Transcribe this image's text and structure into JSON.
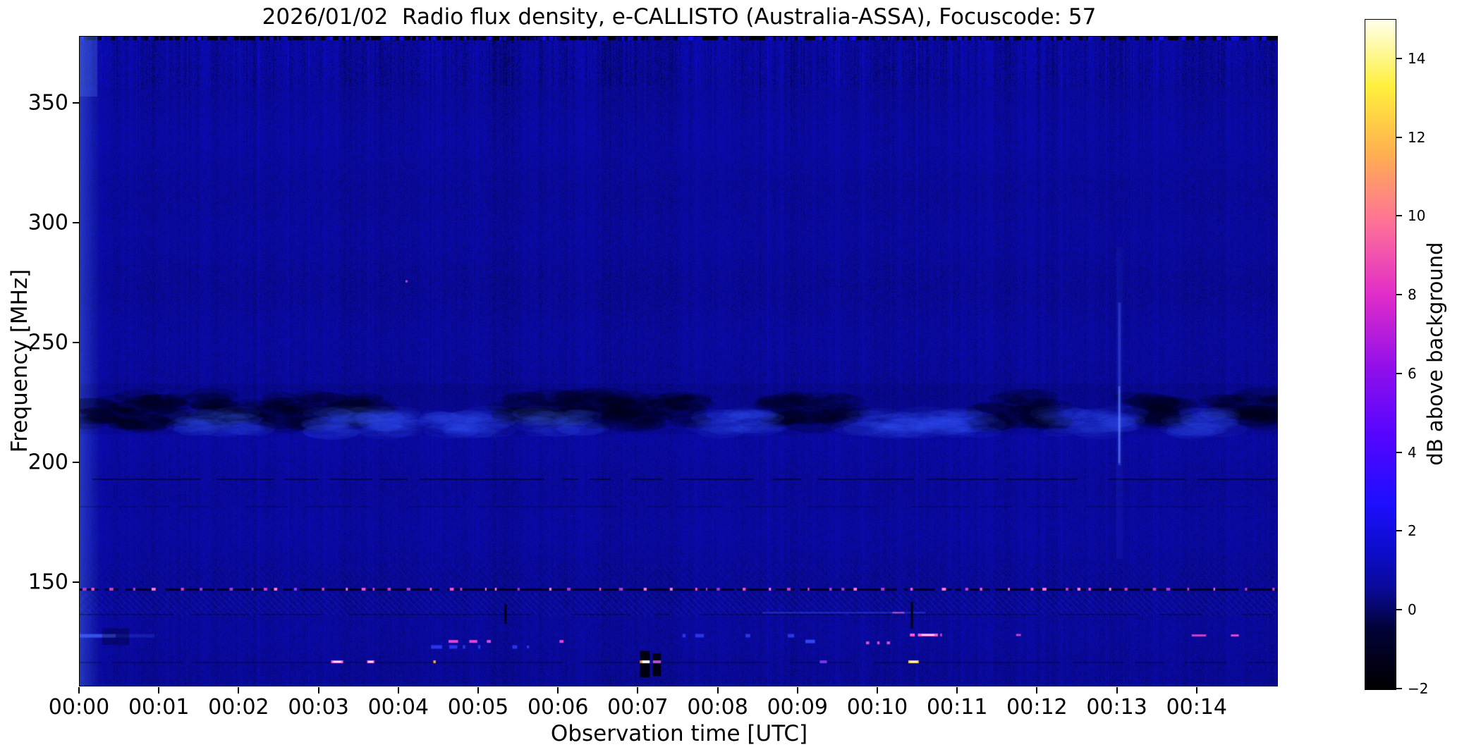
{
  "chart_data": {
    "type": "heatmap",
    "title": "2026/01/02  Radio flux density, e-CALLISTO (Australia-ASSA), Focuscode: 57",
    "xlabel": "Observation time [UTC]",
    "ylabel": "Frequency [MHz]",
    "x_ticks": [
      "00:00",
      "00:01",
      "00:02",
      "00:03",
      "00:04",
      "00:05",
      "00:06",
      "00:07",
      "00:08",
      "00:09",
      "00:10",
      "00:11",
      "00:12",
      "00:13",
      "00:14"
    ],
    "x_tick_minutes": [
      0,
      1,
      2,
      3,
      4,
      5,
      6,
      7,
      8,
      9,
      10,
      11,
      12,
      13,
      14
    ],
    "xlim_minutes": [
      0,
      15
    ],
    "y_ticks": [
      "350",
      "300",
      "250",
      "200",
      "150"
    ],
    "y_tick_mhz": [
      350,
      300,
      250,
      200,
      150
    ],
    "ylim_mhz": [
      107,
      378
    ],
    "grid": false,
    "colorbar": {
      "label": "dB above background",
      "ticks": [
        "14",
        "12",
        "10",
        "8",
        "6",
        "4",
        "2",
        "0",
        "−2"
      ],
      "tick_values": [
        14,
        12,
        10,
        8,
        6,
        4,
        2,
        0,
        -2
      ],
      "range": [
        -2,
        15
      ],
      "colormap": "gnuplot2-like",
      "stops_rgb": [
        [
          0.0,
          0,
          0,
          0
        ],
        [
          0.09,
          2,
          2,
          55
        ],
        [
          0.152,
          10,
          10,
          156
        ],
        [
          0.21,
          12,
          12,
          205
        ],
        [
          0.28,
          30,
          15,
          255
        ],
        [
          0.38,
          85,
          5,
          255
        ],
        [
          0.48,
          145,
          15,
          235
        ],
        [
          0.59,
          225,
          45,
          200
        ],
        [
          0.7,
          255,
          115,
          150
        ],
        [
          0.8,
          255,
          175,
          80
        ],
        [
          0.9,
          255,
          240,
          60
        ],
        [
          1.0,
          255,
          255,
          235
        ]
      ]
    },
    "background": {
      "mean_db": 0.62,
      "base_color": "#0a0a9a",
      "texture": "fine vertical striping noise, stronger contrast in top rows"
    },
    "features": {
      "top_dark_row": {
        "f_range": [
          376,
          378
        ],
        "note": "near-black first rows with blue dashes"
      },
      "left_edge_bright_column": {
        "t_range": [
          0,
          0.22
        ],
        "note": "light blue column at start of record"
      },
      "mid_band": {
        "f_range": [
          212,
          233
        ],
        "note": "patchy interference band ~222 MHz: dark clouds and brighter blue blobs",
        "dark_patches": [
          [
            0.05,
            1.25
          ],
          [
            1.5,
            2.6
          ],
          [
            2.7,
            3.7
          ],
          [
            5.3,
            6.6
          ],
          [
            6.7,
            7.9
          ],
          [
            8.7,
            9.7
          ],
          [
            11.4,
            12.2
          ],
          [
            13.15,
            13.7
          ],
          [
            14.25,
            15
          ]
        ],
        "bright_patches": [
          [
            1.3,
            2.2
          ],
          [
            3.0,
            4.2
          ],
          [
            4.3,
            5.2
          ],
          [
            5.6,
            6.3
          ],
          [
            7.9,
            8.7
          ],
          [
            9.7,
            11.3
          ],
          [
            12.2,
            13.1
          ],
          [
            13.7,
            14.3
          ]
        ]
      },
      "dark_lines": [
        {
          "f_mhz": 193.5,
          "alpha": 0.5
        },
        {
          "f_mhz": 182.0,
          "alpha": 0.22
        },
        {
          "f_mhz": 137.0,
          "alpha": 0.32
        },
        {
          "f_mhz": 117.0,
          "alpha": 0.3
        }
      ],
      "rfi_dot_line": {
        "f_mhz": 147.3,
        "note": "black line dotted with magenta RFI points",
        "dot_colors": [
          "#ff4ddb",
          "#cf3fd0",
          "#a83ae0",
          "#ff7ae8"
        ]
      },
      "hatch_bands": [
        {
          "f_range": [
            136,
            146
          ],
          "strength": 1.0
        },
        {
          "f_range": [
            147,
            158
          ],
          "strength": 0.45
        }
      ],
      "burst_streak": {
        "t_min": 13.02,
        "f_range": [
          199,
          267
        ],
        "halo_f_range": [
          160,
          290
        ],
        "note": "narrow light-blue vertical streak at 00:13"
      },
      "blue_streak_low": {
        "t_range": [
          0,
          0.45
        ],
        "f_mhz": 128,
        "note": "bright blue horizontal streak bottom-left"
      },
      "faint_blue_line": {
        "t_range": [
          8.55,
          10.6
        ],
        "f_mhz": 137.5,
        "pink_t_range": [
          10.18,
          10.33
        ]
      },
      "dashes": [
        {
          "t": [
            4.62,
            4.74
          ],
          "f": 125.5,
          "c": "#e743d6"
        },
        {
          "t": [
            4.88,
            4.98
          ],
          "f": 125.5,
          "c": "#e743d6"
        },
        {
          "t": [
            5.1,
            5.15
          ],
          "f": 125.5,
          "c": "#d84fd8"
        },
        {
          "t": [
            6.01,
            6.06
          ],
          "f": 125.5,
          "c": "#e743d6"
        },
        {
          "t": [
            4.4,
            4.54
          ],
          "f": 123.2,
          "c": "#2a35e8",
          "h": 5
        },
        {
          "t": [
            4.63,
            4.73
          ],
          "f": 123.2,
          "c": "#2a35e8",
          "h": 5
        },
        {
          "t": [
            4.8,
            4.83
          ],
          "f": 123.2,
          "c": "#2a35e8",
          "h": 5
        },
        {
          "t": [
            4.99,
            5.02
          ],
          "f": 123.2,
          "c": "#2a35e8",
          "h": 5
        },
        {
          "t": [
            5.42,
            5.48
          ],
          "f": 123.2,
          "c": "#2a35e8",
          "h": 5
        },
        {
          "t": [
            5.6,
            5.63
          ],
          "f": 123.2,
          "c": "#2a35e8",
          "h": 4
        },
        {
          "t": [
            7.55,
            7.59
          ],
          "f": 127.9,
          "c": "#2a35e8",
          "h": 5
        },
        {
          "t": [
            7.71,
            7.82
          ],
          "f": 127.9,
          "c": "#2a35e8",
          "h": 5
        },
        {
          "t": [
            8.34,
            8.4
          ],
          "f": 127.9,
          "c": "#2a35e8",
          "h": 5
        },
        {
          "t": [
            8.87,
            8.95
          ],
          "f": 127.9,
          "c": "#2a35e8",
          "h": 5
        },
        {
          "t": [
            9.09,
            9.21
          ],
          "f": 125.5,
          "c": "#3344ee",
          "h": 5
        },
        {
          "t": [
            9.85,
            9.89
          ],
          "f": 124.9,
          "c": "#d84fd8"
        },
        {
          "t": [
            9.99,
            10.02
          ],
          "f": 124.9,
          "c": "#d84fd8"
        },
        {
          "t": [
            10.11,
            10.15
          ],
          "f": 124.9,
          "c": "#d84fd8"
        },
        {
          "t": [
            10.4,
            10.46
          ],
          "f": 128.2,
          "c": "#ff5fd0"
        },
        {
          "t": [
            10.5,
            10.75
          ],
          "f": 128.2,
          "c": "#ff5fd0",
          "core": "#ffd8f2"
        },
        {
          "t": [
            10.78,
            10.8
          ],
          "f": 128.2,
          "c": "#e743d6"
        },
        {
          "t": [
            11.73,
            11.79
          ],
          "f": 128.2,
          "c": "#cc44cc",
          "h": 3
        },
        {
          "t": [
            13.93,
            14.11
          ],
          "f": 128.0,
          "c": "#cc44cc",
          "h": 3
        },
        {
          "t": [
            14.42,
            14.52
          ],
          "f": 128.0,
          "c": "#d84fd8",
          "h": 3
        },
        {
          "t": [
            3.15,
            3.3
          ],
          "f": 117.0,
          "c": "#ff66dd",
          "core": "#ffffff"
        },
        {
          "t": [
            3.6,
            3.69
          ],
          "f": 117.0,
          "c": "#ff66dd",
          "core": "#ffffff"
        },
        {
          "t": [
            4.43,
            4.46
          ],
          "f": 117.0,
          "c": "#ffaa33"
        },
        {
          "t": [
            9.27,
            9.36
          ],
          "f": 117.0,
          "c": "#7a35ee"
        },
        {
          "t": [
            10.38,
            10.51
          ],
          "f": 117.0,
          "c": "#ffd24a",
          "core": "#fff8d0"
        }
      ],
      "black_bars": [
        {
          "t": [
            7.02,
            7.14
          ],
          "f": [
            110.5,
            121.5
          ],
          "dash_f": 117,
          "dash_c": "#ffffff",
          "tip_c": "#ff9830"
        },
        {
          "t": [
            7.18,
            7.28
          ],
          "f": [
            111.0,
            120.5
          ],
          "dash_f": 117,
          "dash_c": "#b44fd8"
        }
      ],
      "black_ticks": [
        {
          "t": 5.33,
          "f": [
            133,
            141
          ]
        },
        {
          "t": 10.42,
          "f": [
            131,
            142
          ]
        }
      ],
      "dot_upper": {
        "t": 4.09,
        "f": 276,
        "c": "#c04ac8"
      }
    }
  }
}
